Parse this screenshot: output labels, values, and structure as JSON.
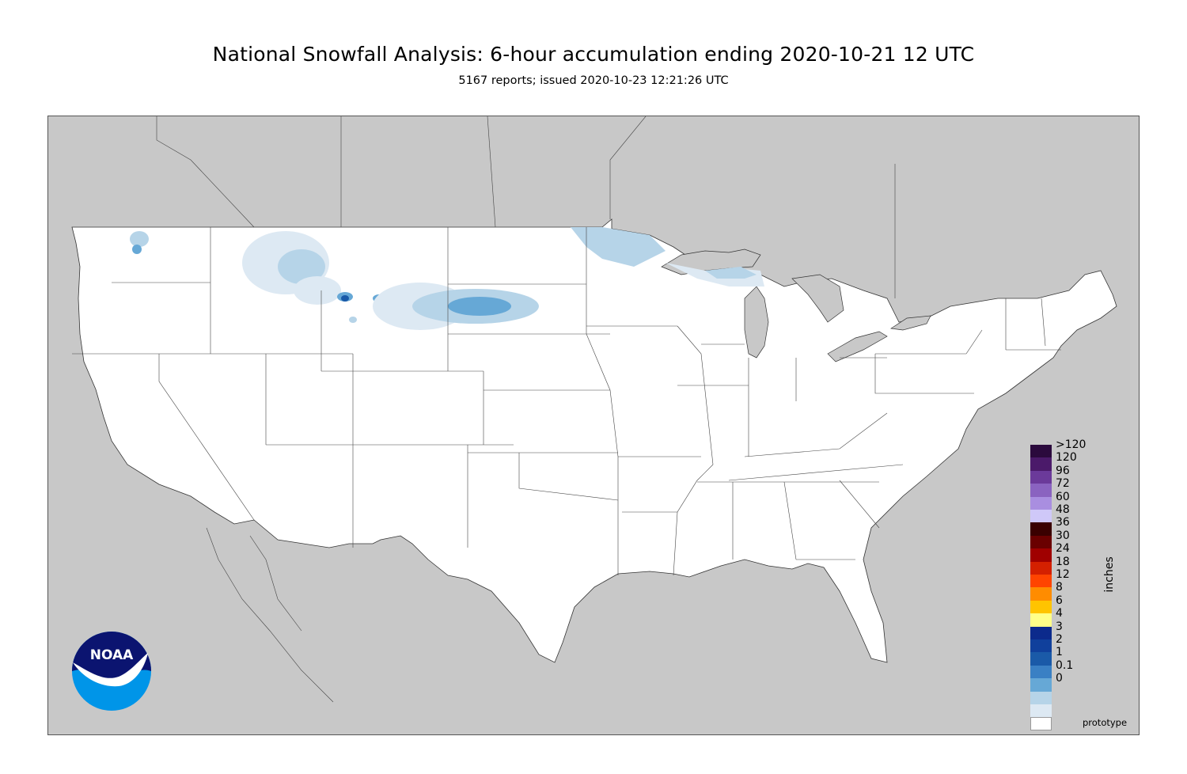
{
  "header": {
    "title": "National Snowfall Analysis: 6-hour accumulation ending 2020-10-21 12 UTC",
    "subtitle": "5167 reports; issued 2020-10-23 12:21:26 UTC"
  },
  "legend": {
    "units": "inches",
    "items": [
      {
        "label": ">120",
        "color": "#2b0a3d"
      },
      {
        "label": "120",
        "color": "#4b1a6a"
      },
      {
        "label": "96",
        "color": "#6b3a9a"
      },
      {
        "label": "72",
        "color": "#8a63c0"
      },
      {
        "label": "60",
        "color": "#a98ee0"
      },
      {
        "label": "48",
        "color": "#cfc8f8"
      },
      {
        "label": "36",
        "color": "#3a0000"
      },
      {
        "label": "30",
        "color": "#6a0000"
      },
      {
        "label": "24",
        "color": "#a00000"
      },
      {
        "label": "18",
        "color": "#d42000"
      },
      {
        "label": "12",
        "color": "#ff4400"
      },
      {
        "label": "8",
        "color": "#ff8c00"
      },
      {
        "label": "6",
        "color": "#ffc400"
      },
      {
        "label": "4",
        "color": "#ffff88"
      },
      {
        "label": "3",
        "color": "#0c2a8c"
      },
      {
        "label": "2",
        "color": "#10409c"
      },
      {
        "label": "1",
        "color": "#1a5aa8"
      },
      {
        "label": "0.1",
        "color": "#3a80c4"
      },
      {
        "label": "0",
        "color": "#66a8d6"
      }
    ],
    "extra_swatches": [
      "#b6d4e8",
      "#dde9f3",
      "#ffffff"
    ]
  },
  "footer": {
    "prototype_label": "prototype"
  },
  "logo": {
    "text": "NOAA",
    "colors": {
      "dark": "#0b1470",
      "light": "#0095e8"
    }
  },
  "map": {
    "ocean_color": "#c8c8c8",
    "land_color": "#ffffff",
    "snow_light": "#dde9f3",
    "snow_mid": "#b6d4e8",
    "snow_heavy": "#66a8d6",
    "snow_max": "#1a5aa8"
  }
}
